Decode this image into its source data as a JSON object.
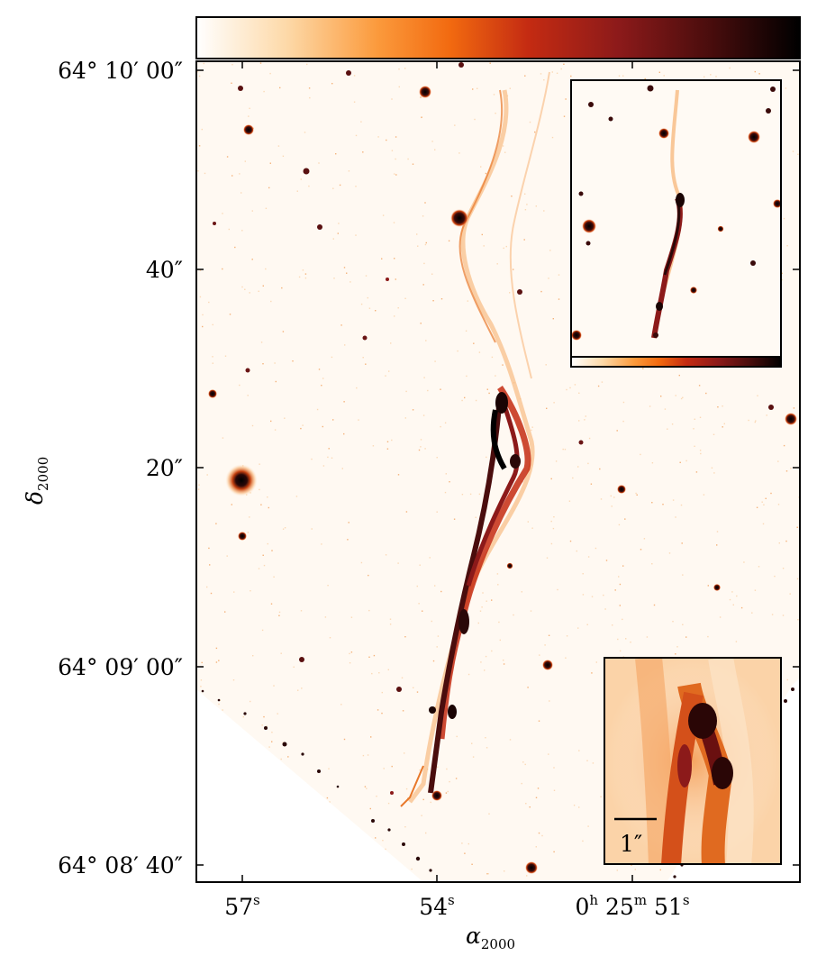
{
  "figure": {
    "y_ticks": [
      "64° 10′ 00″",
      "40″",
      "20″",
      "64° 09′ 00″",
      "64° 08′ 40″"
    ],
    "x_ticks": [
      {
        "base": "57",
        "sup": "s"
      },
      {
        "base": "54",
        "sup": "s"
      },
      {
        "base": "0",
        "sup": "h",
        "base2": " 25",
        "sup2": "m",
        "base3": " 51",
        "sup3": "s"
      }
    ],
    "x_axis_title": {
      "symbol": "α",
      "sub": "2000"
    },
    "y_axis_title": {
      "symbol": "δ",
      "sub": "2000"
    },
    "scale_bar_label": "1″"
  },
  "colormap": {
    "name": "gist_heat reversed",
    "stops": [
      "#ffffff",
      "#fdd9a8",
      "#fb9a3c",
      "#f26a10",
      "#c42b12",
      "#8c1a1a",
      "#4a0d0d",
      "#000000"
    ]
  },
  "panels": {
    "main": "stretched-filament-image",
    "inset_top_right": "smaller-scale-filament-image-with-colorbar",
    "inset_bottom_right": "zoomed-knot-image"
  }
}
